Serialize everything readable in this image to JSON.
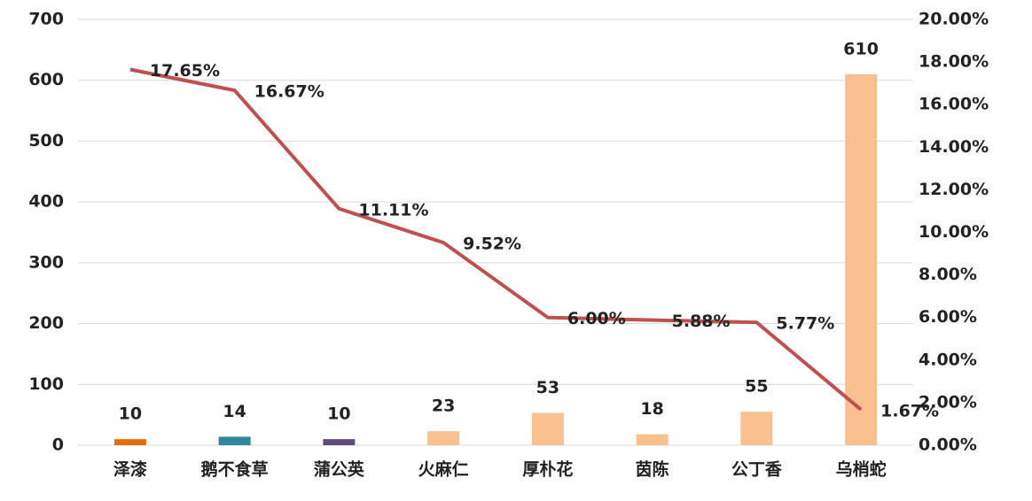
{
  "chart_data": {
    "type": "bar",
    "categories": [
      "泽漆",
      "鹅不食草",
      "蒲公英",
      "火麻仁",
      "厚朴花",
      "茵陈",
      "公丁香",
      "乌梢蛇"
    ],
    "series": [
      {
        "type": "bar",
        "colors": [
          "#e46c0a",
          "#31859c",
          "#604a7b",
          "#fac08f",
          "#fac08f",
          "#fac08f",
          "#fac08f",
          "#fac08f"
        ],
        "values": [
          10,
          14,
          10,
          23,
          53,
          18,
          55,
          610
        ]
      },
      {
        "type": "line",
        "axis": "y2",
        "color": "#c0504d",
        "values": [
          17.65,
          16.67,
          11.11,
          9.52,
          6.0,
          5.88,
          5.77,
          1.67
        ],
        "value_labels": [
          "17.65%",
          "16.67%",
          "11.11%",
          "9.52%",
          "6.00%",
          "5.88%",
          "5.77%",
          "1.67%"
        ]
      }
    ],
    "ylim": [
      0,
      700
    ],
    "yticks": [
      0,
      100,
      200,
      300,
      400,
      500,
      600,
      700
    ],
    "y2lim": [
      0,
      20
    ],
    "y2ticks": [
      {
        "value": 0,
        "label": "0.00%"
      },
      {
        "value": 2,
        "label": "2.00%"
      },
      {
        "value": 4,
        "label": "4.00%"
      },
      {
        "value": 6,
        "label": "6.00%"
      },
      {
        "value": 8,
        "label": "8.00%"
      },
      {
        "value": 10,
        "label": "10.00%"
      },
      {
        "value": 12,
        "label": "12.00%"
      },
      {
        "value": 14,
        "label": "14.00%"
      },
      {
        "value": 16,
        "label": "16.00%"
      },
      {
        "value": 18,
        "label": "18.00%"
      },
      {
        "value": 20,
        "label": "20.00%"
      }
    ],
    "grid": true
  }
}
